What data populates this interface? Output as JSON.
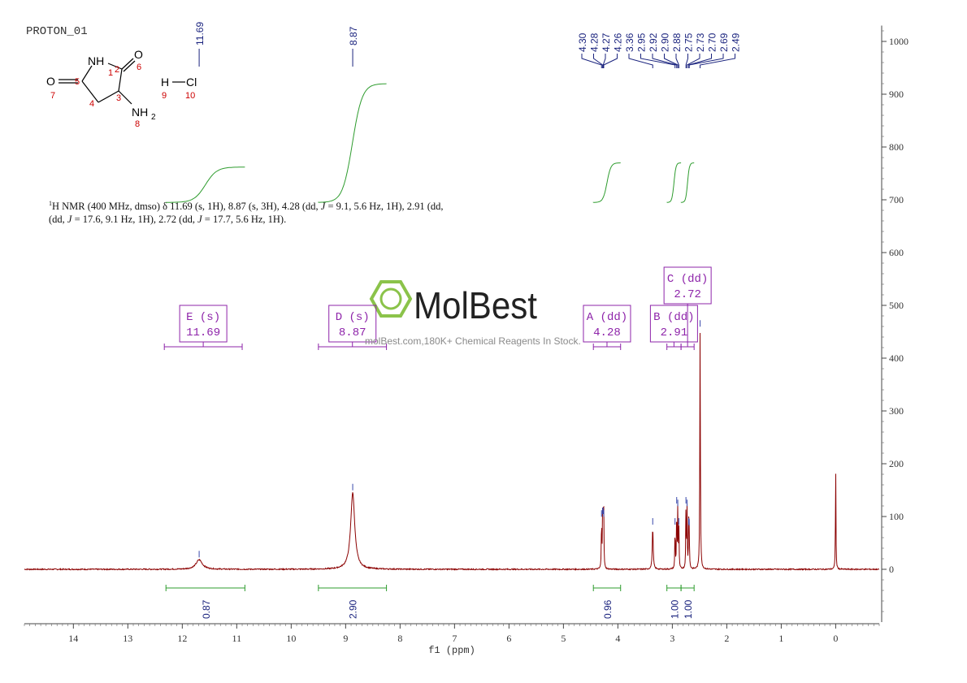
{
  "title": "PROTON_01",
  "description": {
    "nucleus_sup": "1",
    "text1": "H NMR (400 MHz, dmso) δ 11.69 (s, 1H), 8.87 (s, 3H), 4.28 (dd, ",
    "J1": "J",
    "text2": " = 9.1, 5.6 Hz, 1H), 2.91 (dd, ",
    "J2": "J",
    "text3": " = 17.6, 9.1 Hz, 1H), 2.72 (dd, ",
    "J3": "J",
    "text4": " = 17.7, 5.6 Hz, 1H)."
  },
  "molecule": {
    "atoms": {
      "NH": "NH",
      "O6": "O",
      "O7": "O",
      "NH2": "NH",
      "NH2_sub": "2",
      "H": "H",
      "Cl": "Cl"
    },
    "numbers": [
      "1",
      "2",
      "3",
      "4",
      "5",
      "6",
      "7",
      "8",
      "9",
      "10"
    ]
  },
  "watermark": {
    "brand": "MolBest",
    "url": "molBest.com,180K+ Chemical Reagents In Stock."
  },
  "colors": {
    "spectrum": "#8b0000",
    "integral": "#2e9c2e",
    "peak_label": "#1a237e",
    "multiplet": "#8e24aa",
    "watermark_green": "#8bc34a"
  },
  "chart_data": {
    "type": "line",
    "xlabel": "f1 (ppm)",
    "xlim": [
      14.9,
      -0.8
    ],
    "x_ticks": [
      14,
      13,
      12,
      11,
      10,
      9,
      8,
      7,
      6,
      5,
      4,
      3,
      2,
      1,
      0
    ],
    "ylim": [
      -100,
      1030
    ],
    "y_ticks": [
      1000,
      900,
      800,
      700,
      600,
      500,
      400,
      300,
      200,
      100,
      0
    ],
    "peaks": [
      {
        "ppm": 11.69,
        "height": 18,
        "width": 0.07
      },
      {
        "ppm": 8.87,
        "height": 145,
        "width": 0.045
      },
      {
        "ppm": 4.3,
        "height": 95,
        "width": 0.005
      },
      {
        "ppm": 4.28,
        "height": 100,
        "width": 0.005
      },
      {
        "ppm": 4.27,
        "height": 100,
        "width": 0.005
      },
      {
        "ppm": 4.26,
        "height": 95,
        "width": 0.005
      },
      {
        "ppm": 3.36,
        "height": 80,
        "width": 0.01
      },
      {
        "ppm": 2.95,
        "height": 80,
        "width": 0.005
      },
      {
        "ppm": 2.92,
        "height": 120,
        "width": 0.005
      },
      {
        "ppm": 2.9,
        "height": 115,
        "width": 0.005
      },
      {
        "ppm": 2.88,
        "height": 80,
        "width": 0.005
      },
      {
        "ppm": 2.75,
        "height": 120,
        "width": 0.005
      },
      {
        "ppm": 2.73,
        "height": 115,
        "width": 0.005
      },
      {
        "ppm": 2.7,
        "height": 80,
        "width": 0.005
      },
      {
        "ppm": 2.69,
        "height": 78,
        "width": 0.005
      },
      {
        "ppm": 2.49,
        "height": 455,
        "width": 0.006
      },
      {
        "ppm": 0.0,
        "height": 198,
        "width": 0.005
      }
    ],
    "peak_labels": [
      "11.69",
      "8.87",
      "4.30",
      "4.28",
      "4.27",
      "4.26",
      "3.36",
      "2.95",
      "2.92",
      "2.90",
      "2.88",
      "2.75",
      "2.73",
      "2.70",
      "2.69",
      "2.49"
    ],
    "integrals": [
      {
        "from": 12.3,
        "to": 10.85,
        "value": "0.87",
        "curve_y": [
          695,
          762
        ]
      },
      {
        "from": 9.5,
        "to": 8.25,
        "value": "2.90",
        "curve_y": [
          695,
          920
        ]
      },
      {
        "from": 4.45,
        "to": 3.95,
        "value": "0.96",
        "curve_y": [
          695,
          770
        ]
      },
      {
        "from": 3.1,
        "to": 2.84,
        "value": "1.00",
        "curve_y": [
          695,
          770
        ]
      },
      {
        "from": 2.84,
        "to": 2.6,
        "value": "1.00",
        "curve_y": [
          695,
          770
        ]
      }
    ],
    "multiplets": [
      {
        "label": "E (s)",
        "value": "11.69",
        "range": [
          12.33,
          10.9
        ]
      },
      {
        "label": "D (s)",
        "value": "8.87",
        "range": [
          9.5,
          8.25
        ]
      },
      {
        "label": "A (dd)",
        "value": "4.28",
        "range": [
          4.45,
          3.95
        ]
      },
      {
        "label": "B (dd)",
        "value": "2.91",
        "range": [
          3.1,
          2.84
        ]
      },
      {
        "label": "C (dd)",
        "value": "2.72",
        "range": [
          2.84,
          2.6
        ]
      }
    ]
  }
}
